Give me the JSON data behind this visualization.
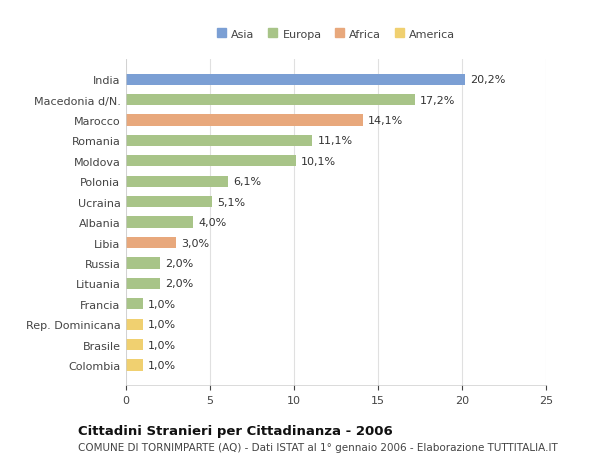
{
  "categories": [
    "India",
    "Macedonia d/N.",
    "Marocco",
    "Romania",
    "Moldova",
    "Polonia",
    "Ucraina",
    "Albania",
    "Libia",
    "Russia",
    "Lituania",
    "Francia",
    "Rep. Dominicana",
    "Brasile",
    "Colombia"
  ],
  "values": [
    20.2,
    17.2,
    14.1,
    11.1,
    10.1,
    6.1,
    5.1,
    4.0,
    3.0,
    2.0,
    2.0,
    1.0,
    1.0,
    1.0,
    1.0
  ],
  "labels": [
    "20,2%",
    "17,2%",
    "14,1%",
    "11,1%",
    "10,1%",
    "6,1%",
    "5,1%",
    "4,0%",
    "3,0%",
    "2,0%",
    "2,0%",
    "1,0%",
    "1,0%",
    "1,0%",
    "1,0%"
  ],
  "colors": [
    "#7b9fd4",
    "#a8c488",
    "#e8a87c",
    "#a8c488",
    "#a8c488",
    "#a8c488",
    "#a8c488",
    "#a8c488",
    "#e8a87c",
    "#a8c488",
    "#a8c488",
    "#a8c488",
    "#f0d070",
    "#f0d070",
    "#f0d070"
  ],
  "legend_labels": [
    "Asia",
    "Europa",
    "Africa",
    "America"
  ],
  "legend_colors": [
    "#7b9fd4",
    "#a8c488",
    "#e8a87c",
    "#f0d070"
  ],
  "title": "Cittadini Stranieri per Cittadinanza - 2006",
  "subtitle": "COMUNE DI TORNIMPARTE (AQ) - Dati ISTAT al 1° gennaio 2006 - Elaborazione TUTTITALIA.IT",
  "xlim": [
    0,
    25
  ],
  "xticks": [
    0,
    5,
    10,
    15,
    20,
    25
  ],
  "bg_color": "#ffffff",
  "plot_bg_color": "#ffffff",
  "bar_height": 0.55,
  "label_fontsize": 8,
  "tick_fontsize": 8,
  "title_fontsize": 9.5,
  "subtitle_fontsize": 7.5
}
